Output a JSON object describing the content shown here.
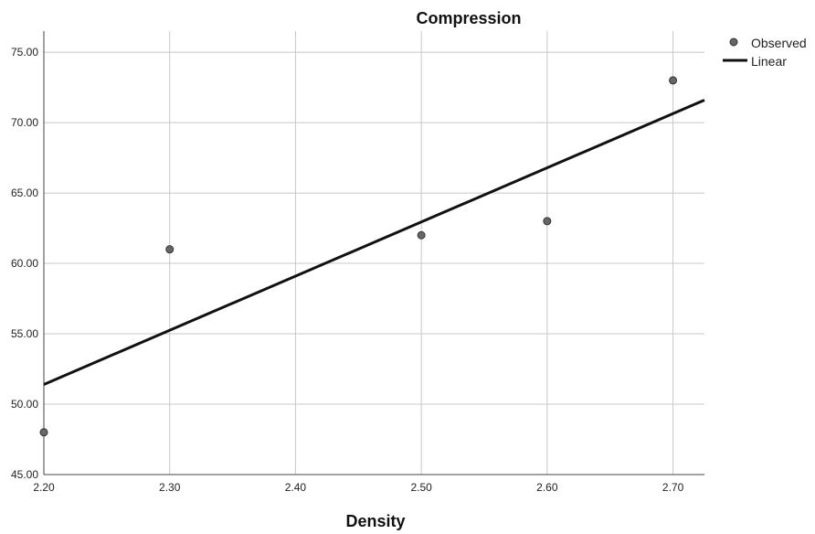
{
  "chart_data": {
    "type": "scatter",
    "title": "Compression",
    "xlabel": "Density",
    "ylabel": "",
    "xlim": [
      2.2,
      2.725
    ],
    "ylim": [
      45,
      76.5
    ],
    "x_ticks": [
      2.2,
      2.3,
      2.4,
      2.5,
      2.6,
      2.7
    ],
    "x_tick_labels": [
      "2.20",
      "2.30",
      "2.40",
      "2.50",
      "2.60",
      "2.70"
    ],
    "y_ticks": [
      45,
      50,
      55,
      60,
      65,
      70,
      75
    ],
    "y_tick_labels": [
      "45.00",
      "50.00",
      "55.00",
      "60.00",
      "65.00",
      "70.00",
      "75.00"
    ],
    "grid": true,
    "legend_position": "top-right outside",
    "series": [
      {
        "name": "Observed",
        "kind": "scatter",
        "color": "#555555",
        "points": [
          {
            "x": 2.2,
            "y": 48
          },
          {
            "x": 2.3,
            "y": 61
          },
          {
            "x": 2.5,
            "y": 62
          },
          {
            "x": 2.6,
            "y": 63
          },
          {
            "x": 2.7,
            "y": 73
          }
        ]
      },
      {
        "name": "Linear",
        "kind": "line",
        "color": "#111111",
        "points": [
          {
            "x": 2.2,
            "y": 51.4
          },
          {
            "x": 2.725,
            "y": 71.6
          }
        ]
      }
    ]
  }
}
